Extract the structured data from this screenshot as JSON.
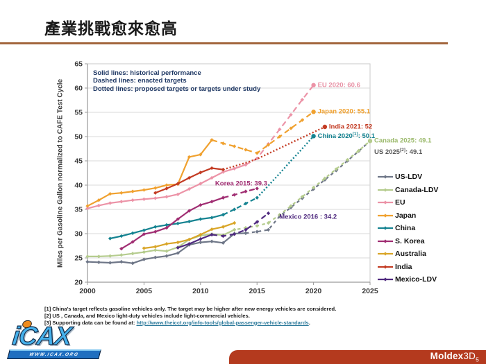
{
  "slide": {
    "title": "產業挑戰愈來愈高",
    "accent_rule_color": "#a2653c"
  },
  "logos": {
    "icax": {
      "wordmark": "iCAX",
      "banner": "WWW.ICAX.ORG"
    },
    "moldex": {
      "brand_bold": "Moldex",
      "brand_3d": "3D",
      "sub": "5",
      "bar_color": "#b43a1e"
    }
  },
  "footnotes": [
    {
      "text": "[1] China's target reflects gasoline vehicles only. The target may be higher after new energy vehicles are considered."
    },
    {
      "text": "[2] US , Canada, and Mexico light-duty vehicles include light-commercial vehicles."
    },
    {
      "prefix": "[3] Supporting data can be found at: ",
      "link": "http://www.theicct.org/info-tools/global-passenger-vehicle-standards",
      "suffix": "."
    }
  ],
  "chart_data": {
    "type": "line",
    "title": "",
    "xlabel": "",
    "ylabel": "Miles per Gasoline Gallon normalized to CAFE Test Cycle",
    "xlim": [
      2000,
      2025
    ],
    "ylim": [
      20,
      65
    ],
    "x_ticks": [
      "2000",
      "2005",
      "2010",
      "2015",
      "2020",
      "2025"
    ],
    "y_ticks": [
      "20",
      "25",
      "30",
      "35",
      "40",
      "45",
      "50",
      "55",
      "60",
      "65"
    ],
    "grid": true,
    "grid_color": "#d9d9d9",
    "axis_color": "#9a9a9a",
    "legend_position": "right",
    "notes": [
      "Solid lines: historical performance",
      "Dashed lines: enacted targets",
      "Dotted lines: proposed targets or targets under study"
    ],
    "line_style_meaning": {
      "solid": "historical performance",
      "dashed": "enacted targets",
      "dotted": "proposed targets or targets under study"
    },
    "series": [
      {
        "name": "US-LDV",
        "color": "#6e7687",
        "segments": [
          {
            "style": "solid",
            "points": [
              [
                2000,
                24.2
              ],
              [
                2001,
                24.1
              ],
              [
                2002,
                24.0
              ],
              [
                2003,
                24.2
              ],
              [
                2004,
                23.9
              ],
              [
                2005,
                24.7
              ],
              [
                2006,
                25.1
              ],
              [
                2007,
                25.4
              ],
              [
                2008,
                26.0
              ],
              [
                2009,
                27.7
              ],
              [
                2010,
                28.2
              ],
              [
                2011,
                28.4
              ],
              [
                2012,
                28.1
              ],
              [
                2013,
                30.0
              ],
              [
                2014,
                30.1
              ]
            ]
          },
          {
            "style": "dashed",
            "dash": "4.5,4.5",
            "points": [
              [
                2014,
                30.1
              ],
              [
                2015,
                30.4
              ],
              [
                2016,
                30.8
              ],
              [
                2017,
                33.6
              ],
              [
                2018,
                35.4
              ],
              [
                2019,
                37.3
              ],
              [
                2020,
                39.2
              ],
              [
                2021,
                41.1
              ],
              [
                2022,
                43.0
              ],
              [
                2023,
                45.0
              ],
              [
                2024,
                47.0
              ],
              [
                2025,
                49.1
              ]
            ]
          }
        ]
      },
      {
        "name": "Canada-LDV",
        "color": "#b5cc8e",
        "segments": [
          {
            "style": "solid",
            "points": [
              [
                2000,
                25.3
              ],
              [
                2001,
                25.3
              ],
              [
                2002,
                25.4
              ],
              [
                2003,
                25.6
              ],
              [
                2004,
                25.9
              ],
              [
                2005,
                26.2
              ],
              [
                2006,
                26.6
              ],
              [
                2007,
                26.4
              ],
              [
                2008,
                27.2
              ],
              [
                2009,
                28.8
              ],
              [
                2010,
                29.6
              ],
              [
                2011,
                29.9
              ],
              [
                2012,
                29.7
              ],
              [
                2013,
                30.8
              ]
            ]
          },
          {
            "style": "dashed",
            "dash": "4.5,4.5",
            "dashoffset": 4.5,
            "points": [
              [
                2013,
                30.8
              ],
              [
                2014,
                31.2
              ],
              [
                2015,
                31.6
              ],
              [
                2016,
                32.2
              ],
              [
                2017,
                33.9
              ],
              [
                2018,
                35.7
              ],
              [
                2019,
                37.6
              ],
              [
                2020,
                39.5
              ],
              [
                2021,
                41.4
              ],
              [
                2022,
                43.3
              ],
              [
                2023,
                45.2
              ],
              [
                2024,
                47.1
              ],
              [
                2025,
                49.1
              ]
            ]
          }
        ]
      },
      {
        "name": "EU",
        "color": "#ec93a7",
        "segments": [
          {
            "style": "solid",
            "points": [
              [
                2000,
                35.2
              ],
              [
                2001,
                35.8
              ],
              [
                2002,
                36.3
              ],
              [
                2003,
                36.6
              ],
              [
                2004,
                36.9
              ],
              [
                2005,
                37.1
              ],
              [
                2006,
                37.3
              ],
              [
                2007,
                37.6
              ],
              [
                2008,
                38.1
              ],
              [
                2009,
                39.2
              ],
              [
                2010,
                40.3
              ],
              [
                2011,
                41.5
              ],
              [
                2012,
                42.7
              ],
              [
                2013,
                43.4
              ],
              [
                2014,
                44.2
              ]
            ]
          },
          {
            "style": "dashed",
            "points": [
              [
                2014,
                44.2
              ],
              [
                2015,
                45.5
              ],
              [
                2016,
                48.5
              ],
              [
                2017,
                51.5
              ],
              [
                2018,
                54.5
              ],
              [
                2019,
                57.6
              ],
              [
                2020,
                60.6
              ]
            ]
          }
        ]
      },
      {
        "name": "Japan",
        "color": "#f0a12f",
        "segments": [
          {
            "style": "solid",
            "points": [
              [
                2000,
                35.7
              ],
              [
                2001,
                36.9
              ],
              [
                2002,
                38.2
              ],
              [
                2003,
                38.4
              ],
              [
                2004,
                38.7
              ],
              [
                2005,
                39.0
              ],
              [
                2006,
                39.4
              ],
              [
                2007,
                40.0
              ],
              [
                2008,
                40.2
              ],
              [
                2009,
                45.8
              ],
              [
                2010,
                46.3
              ],
              [
                2011,
                49.3
              ]
            ]
          },
          {
            "style": "dashed",
            "points": [
              [
                2011,
                49.3
              ],
              [
                2012,
                48.6
              ],
              [
                2013,
                48.0
              ],
              [
                2014,
                47.3
              ],
              [
                2015,
                46.6
              ],
              [
                2016,
                48.3
              ],
              [
                2017,
                50.0
              ],
              [
                2018,
                51.7
              ],
              [
                2019,
                53.4
              ],
              [
                2020,
                55.1
              ]
            ]
          }
        ]
      },
      {
        "name": "China",
        "color": "#158391",
        "segments": [
          {
            "style": "solid",
            "points": [
              [
                2002,
                29.0
              ],
              [
                2003,
                29.5
              ],
              [
                2004,
                30.1
              ],
              [
                2005,
                30.7
              ],
              [
                2006,
                31.4
              ],
              [
                2007,
                31.8
              ],
              [
                2008,
                32.1
              ],
              [
                2009,
                32.5
              ],
              [
                2010,
                33.0
              ],
              [
                2011,
                33.3
              ],
              [
                2012,
                33.9
              ]
            ]
          },
          {
            "style": "dashed",
            "dash": "7,4",
            "points": [
              [
                2012,
                33.9
              ],
              [
                2013,
                35.0
              ],
              [
                2014,
                36.2
              ],
              [
                2015,
                37.4
              ]
            ]
          },
          {
            "style": "dotted",
            "points": [
              [
                2015,
                37.4
              ],
              [
                2016,
                39.9
              ],
              [
                2017,
                42.4
              ],
              [
                2018,
                45.0
              ],
              [
                2019,
                47.5
              ],
              [
                2020,
                50.1
              ]
            ]
          }
        ]
      },
      {
        "name": "S. Korea",
        "color": "#a02d72",
        "segments": [
          {
            "style": "solid",
            "points": [
              [
                2003,
                26.9
              ],
              [
                2004,
                28.3
              ],
              [
                2005,
                29.9
              ],
              [
                2006,
                30.4
              ],
              [
                2007,
                31.2
              ],
              [
                2008,
                33.0
              ],
              [
                2009,
                34.7
              ],
              [
                2010,
                35.9
              ],
              [
                2011,
                36.6
              ],
              [
                2012,
                37.4
              ]
            ]
          },
          {
            "style": "dashed",
            "points": [
              [
                2012,
                37.4
              ],
              [
                2013,
                38.0
              ],
              [
                2014,
                38.7
              ],
              [
                2015,
                39.3
              ]
            ]
          }
        ]
      },
      {
        "name": "Australia",
        "color": "#d9a527",
        "segments": [
          {
            "style": "solid",
            "points": [
              [
                2005,
                27.0
              ],
              [
                2006,
                27.3
              ],
              [
                2007,
                27.9
              ],
              [
                2008,
                28.2
              ],
              [
                2009,
                28.8
              ],
              [
                2010,
                29.8
              ],
              [
                2011,
                30.9
              ],
              [
                2012,
                31.4
              ],
              [
                2013,
                32.2
              ]
            ]
          }
        ]
      },
      {
        "name": "India",
        "color": "#c33b23",
        "segments": [
          {
            "style": "solid",
            "points": [
              [
                2006,
                38.4
              ],
              [
                2007,
                39.3
              ],
              [
                2008,
                40.3
              ],
              [
                2009,
                41.5
              ],
              [
                2010,
                42.6
              ],
              [
                2011,
                43.5
              ],
              [
                2012,
                43.2
              ]
            ]
          },
          {
            "style": "dotted",
            "points": [
              [
                2012,
                43.2
              ],
              [
                2013,
                43.9
              ],
              [
                2014,
                44.6
              ],
              [
                2015,
                45.4
              ],
              [
                2016,
                46.5
              ],
              [
                2017,
                47.6
              ],
              [
                2018,
                48.7
              ],
              [
                2019,
                49.8
              ],
              [
                2020,
                50.9
              ],
              [
                2021,
                52.0
              ]
            ]
          }
        ]
      },
      {
        "name": "Mexico-LDV",
        "color": "#4f2a7f",
        "segments": [
          {
            "style": "solid",
            "points": [
              [
                2008,
                27.1
              ],
              [
                2009,
                27.9
              ],
              [
                2010,
                28.9
              ],
              [
                2011,
                29.8
              ]
            ]
          },
          {
            "style": "dashed",
            "points": [
              [
                2011,
                29.8
              ],
              [
                2012,
                29.5
              ],
              [
                2013,
                29.9
              ],
              [
                2014,
                30.8
              ],
              [
                2015,
                32.4
              ],
              [
                2016,
                34.2
              ]
            ]
          }
        ]
      }
    ],
    "annotations": [
      {
        "id": "eu-2020",
        "parts": [
          {
            "t": "EU 2020: 60.6"
          }
        ],
        "color": "#e891a5",
        "year": 2020,
        "value": 60.6,
        "align": "left",
        "dot": true
      },
      {
        "id": "japan-2020",
        "parts": [
          {
            "t": "Japan 2020: 55.1"
          }
        ],
        "color": "#f0a12f",
        "year": 2020,
        "value": 55.1,
        "align": "left",
        "dot": true
      },
      {
        "id": "india-2021",
        "parts": [
          {
            "t": "India 2021: 52"
          }
        ],
        "color": "#c33b23",
        "year": 2021,
        "value": 52.0,
        "align": "left",
        "dot": true
      },
      {
        "id": "china-2020",
        "parts": [
          {
            "t": "China 2020"
          },
          {
            "t": "[1]",
            "sup": true
          },
          {
            "t": ": 50.1"
          }
        ],
        "color": "#158391",
        "year": 2020,
        "value": 50.1,
        "align": "left",
        "dot": true
      },
      {
        "id": "canada-2025",
        "parts": [
          {
            "t": "Canada 2025: 49.1"
          }
        ],
        "color": "#9cba6d",
        "year": 2025,
        "value": 49.1,
        "align": "left",
        "dot": true
      },
      {
        "id": "us-2025",
        "parts": [
          {
            "t": "US 2025"
          },
          {
            "t": "[2]",
            "sup": true
          },
          {
            "t": ": 49.1"
          }
        ],
        "color": "#595959",
        "year": 2025,
        "value": 46.8,
        "align": "left",
        "dot": false
      },
      {
        "id": "korea-2015",
        "parts": [
          {
            "t": "Korea 2015: 39.3"
          }
        ],
        "color": "#a02d72",
        "year": 2013.6,
        "value": 40.3,
        "align": "center",
        "dot": false
      },
      {
        "id": "mexico-2016",
        "parts": [
          {
            "t": "Mexico 2016 : 34.2"
          }
        ],
        "color": "#4f2a7f",
        "year": 2016.6,
        "value": 33.5,
        "align": "left",
        "dot": false
      }
    ]
  }
}
